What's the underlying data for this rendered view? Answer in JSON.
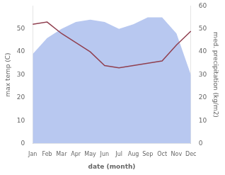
{
  "chart_data": {
    "type": "line",
    "xlabel": "date (month)",
    "ylabel": "max temp (C)",
    "y2label": "med. precipitation (kg/m2)",
    "categories": [
      "Jan",
      "Feb",
      "Mar",
      "Apr",
      "May",
      "Jun",
      "Jul",
      "Aug",
      "Sep",
      "Oct",
      "Nov",
      "Dec"
    ],
    "series": [
      {
        "type": "area",
        "color": "#b8c8f0",
        "values": [
          39,
          46,
          50,
          53,
          54,
          53,
          50,
          52,
          55,
          55,
          48,
          30
        ]
      },
      {
        "type": "line",
        "color": "#904050",
        "values": [
          52,
          53,
          48,
          44,
          40,
          34,
          33,
          34,
          35,
          36,
          43,
          49
        ]
      }
    ],
    "ylim": [
      0,
      60
    ],
    "yticks": [
      0,
      10,
      20,
      30,
      40,
      50
    ],
    "y2lim": [
      0,
      60
    ],
    "y2ticks": [
      0,
      10,
      20,
      30,
      40,
      50,
      60
    ],
    "grid": false
  }
}
